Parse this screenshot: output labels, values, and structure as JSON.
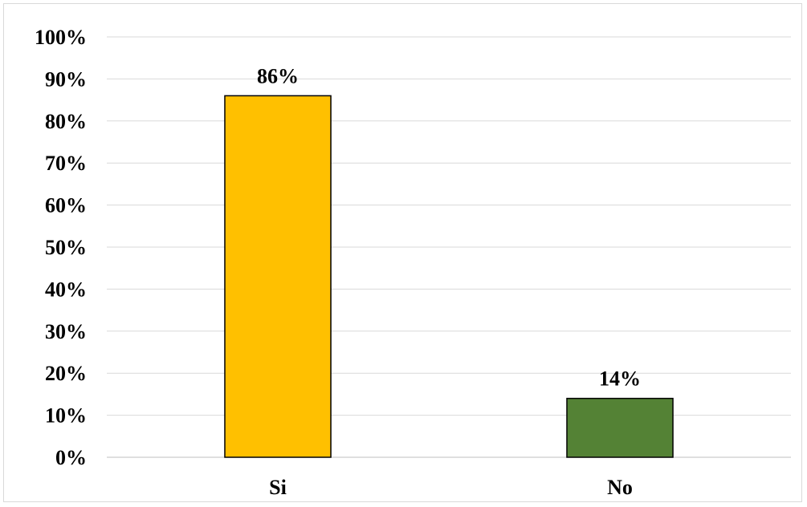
{
  "chart_data": {
    "type": "bar",
    "categories": [
      "Si",
      "No"
    ],
    "values": [
      86,
      14
    ],
    "data_labels": [
      "86%",
      "14%"
    ],
    "colors": [
      "#ffc000",
      "#548235"
    ],
    "ylim": [
      0,
      100
    ],
    "y_ticks": [
      0,
      10,
      20,
      30,
      40,
      50,
      60,
      70,
      80,
      90,
      100
    ],
    "y_tick_labels": [
      "0%",
      "10%",
      "20%",
      "30%",
      "40%",
      "50%",
      "60%",
      "70%",
      "80%",
      "90%",
      "100%"
    ],
    "grid": true,
    "legend": "none"
  }
}
